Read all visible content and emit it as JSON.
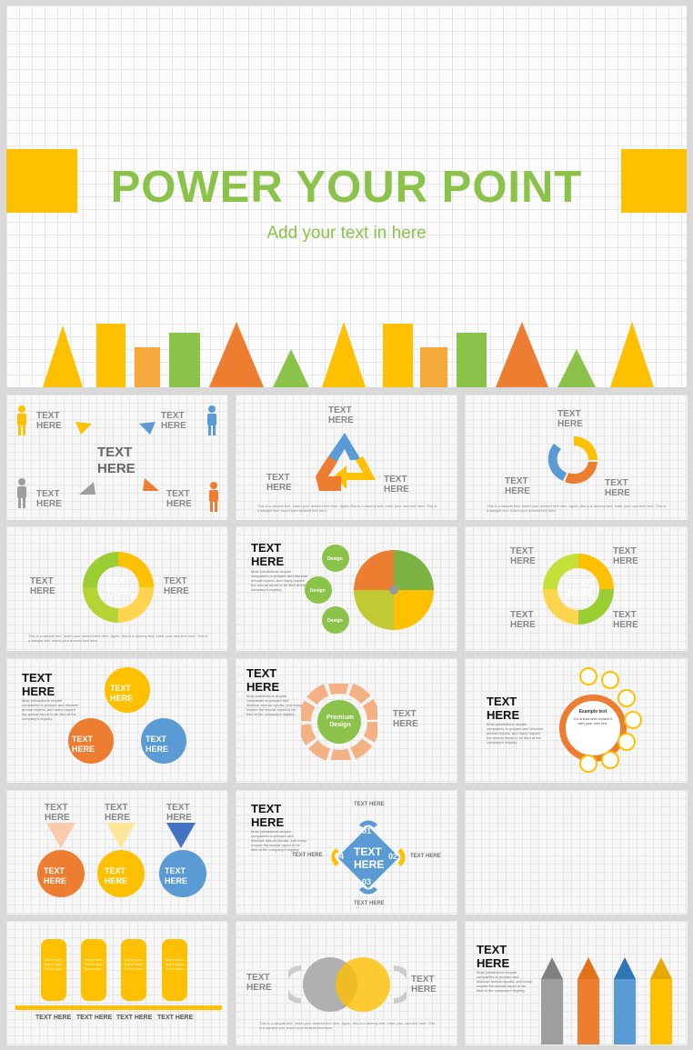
{
  "hero": {
    "title": "POWER YOUR POINT",
    "subtitle": "Add your text in here"
  },
  "labels": {
    "text": "TEXT",
    "here": "HERE",
    "text_here": "TEXT HERE",
    "text_here_big": "TEXT HERE",
    "small": "Text in here. Text in here.",
    "body": "Most jurisdictions require companies to prepare and disclose annual reports, and many require the annual report to be filed at the company's registry.",
    "footer": "This is a sample text. Insert your desired text here. Again, this is a dummy text, enter your own text here. This is a sample text. Insert your desired text here.",
    "premium": "Premium Design",
    "design": "Design",
    "example": "Example text",
    "example_body": "Go ahead and replace it with your own text.",
    "n01": "01",
    "n02": "02",
    "n03": "03",
    "n04": "04",
    "tab_text": "Text in here. Text in here. Text in here."
  },
  "colors": {
    "yellow": "#ffc000",
    "orange": "#ed7d31",
    "light_orange": "#f4a93a",
    "green": "#8bc34a",
    "blue": "#5b9bd5",
    "gray": "#9e9e9e"
  }
}
